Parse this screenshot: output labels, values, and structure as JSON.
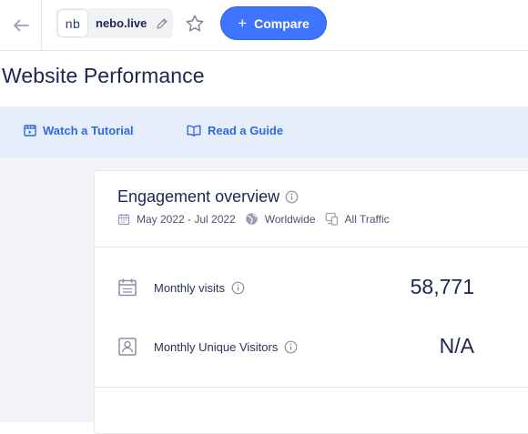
{
  "header": {
    "favicon_text": "nb",
    "domain": "nebo.live",
    "compare_label": "Compare"
  },
  "page": {
    "title": "Website Performance"
  },
  "help_links": [
    {
      "label": "Watch a Tutorial",
      "icon": "video-tutorial-icon"
    },
    {
      "label": "Read a Guide",
      "icon": "book-icon"
    }
  ],
  "engagement": {
    "title": "Engagement overview",
    "date_range": "May 2022 - Jul 2022",
    "region": "Worldwide",
    "traffic": "All Traffic",
    "metrics": [
      {
        "label": "Monthly visits",
        "value": "58,771",
        "icon": "calendar-icon"
      },
      {
        "label": "Monthly Unique Visitors",
        "value": "N/A",
        "icon": "visitor-icon"
      }
    ]
  },
  "colors": {
    "accent": "#3e74fe",
    "link": "#2f6ae0",
    "help_bar": "#e6eefc",
    "text": "#1b2653"
  }
}
